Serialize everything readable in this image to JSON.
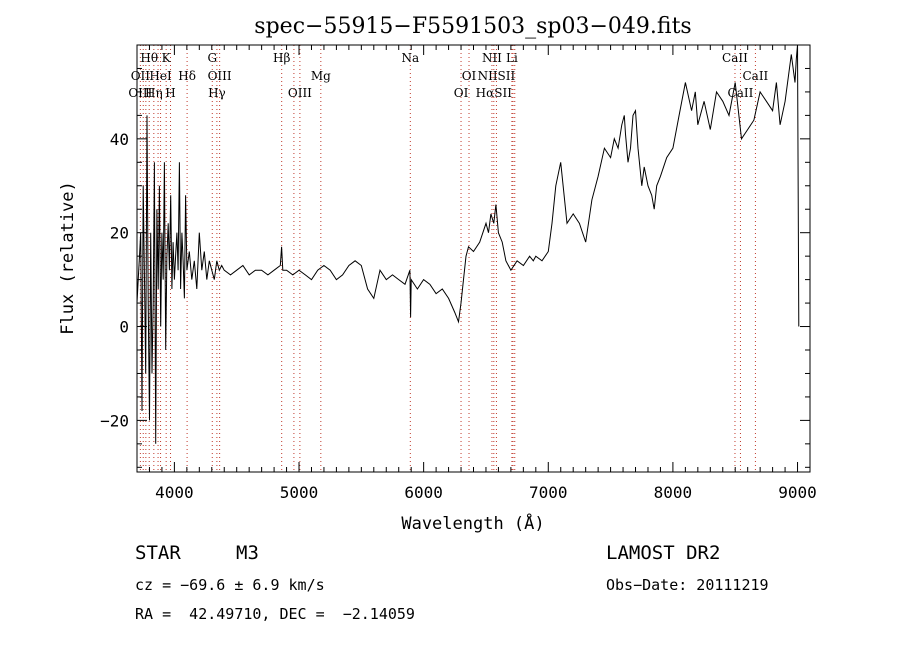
{
  "chart_data": {
    "type": "line",
    "title": "spec−55915−F5591503_sp03−049.fits",
    "xlabel": "Wavelength (Å)",
    "ylabel": "Flux (relative)",
    "xlim": [
      3700,
      9100
    ],
    "ylim": [
      -31,
      60
    ],
    "x_ticks": [
      4000,
      5000,
      6000,
      7000,
      8000,
      9000
    ],
    "y_ticks": [
      -20,
      0,
      20,
      40
    ],
    "x_tick_labels": [
      "4000",
      "5000",
      "6000",
      "7000",
      "8000",
      "9000"
    ],
    "y_tick_labels": [
      "−20",
      "0",
      "20",
      "40"
    ],
    "grid": false,
    "series": [
      {
        "color": "#000000",
        "x": [
          3700,
          3710,
          3720,
          3730,
          3740,
          3750,
          3760,
          3770,
          3780,
          3790,
          3800,
          3810,
          3820,
          3830,
          3840,
          3850,
          3860,
          3870,
          3880,
          3890,
          3900,
          3910,
          3920,
          3930,
          3940,
          3950,
          3960,
          3970,
          3980,
          3990,
          4000,
          4010,
          4020,
          4030,
          4040,
          4050,
          4060,
          4070,
          4080,
          4090,
          4100,
          4120,
          4140,
          4160,
          4180,
          4200,
          4220,
          4240,
          4260,
          4280,
          4300,
          4320,
          4340,
          4360,
          4380,
          4400,
          4450,
          4500,
          4550,
          4600,
          4650,
          4700,
          4750,
          4800,
          4850,
          4860,
          4870,
          4900,
          4950,
          5000,
          5050,
          5100,
          5150,
          5200,
          5250,
          5300,
          5350,
          5400,
          5450,
          5500,
          5550,
          5600,
          5650,
          5700,
          5750,
          5800,
          5850,
          5890,
          5895,
          5900,
          5950,
          6000,
          6050,
          6100,
          6150,
          6200,
          6250,
          6280,
          6300,
          6320,
          6340,
          6360,
          6400,
          6450,
          6500,
          6520,
          6540,
          6563,
          6580,
          6600,
          6630,
          6660,
          6700,
          6750,
          6800,
          6850,
          6880,
          6900,
          6950,
          7000,
          7030,
          7060,
          7100,
          7150,
          7200,
          7250,
          7300,
          7350,
          7400,
          7450,
          7500,
          7530,
          7560,
          7590,
          7610,
          7620,
          7640,
          7660,
          7680,
          7700,
          7720,
          7750,
          7770,
          7800,
          7830,
          7850,
          7870,
          7900,
          7950,
          8000,
          8050,
          8100,
          8150,
          8180,
          8200,
          8250,
          8300,
          8350,
          8400,
          8450,
          8500,
          8550,
          8600,
          8650,
          8700,
          8750,
          8800,
          8830,
          8860,
          8900,
          8950,
          8980,
          8990,
          9000,
          9010
        ],
        "y": [
          5,
          10,
          15,
          20,
          -18,
          30,
          10,
          -10,
          45,
          5,
          -20,
          20,
          -10,
          5,
          35,
          -25,
          25,
          8,
          30,
          0,
          20,
          10,
          35,
          -5,
          15,
          22,
          12,
          28,
          8,
          18,
          10,
          15,
          20,
          12,
          35,
          8,
          20,
          14,
          6,
          28,
          12,
          16,
          10,
          14,
          8,
          20,
          12,
          16,
          10,
          14,
          12,
          10,
          14,
          12,
          13,
          12,
          11,
          12,
          13,
          11,
          12,
          12,
          11,
          12,
          13,
          17,
          12,
          12,
          11,
          12,
          11,
          10,
          12,
          13,
          12,
          10,
          11,
          13,
          14,
          13,
          8,
          6,
          12,
          10,
          11,
          10,
          9,
          12,
          2,
          10,
          8,
          10,
          9,
          7,
          8,
          6,
          3,
          1,
          5,
          10,
          15,
          17,
          16,
          18,
          22,
          20,
          24,
          22,
          26,
          20,
          18,
          14,
          12,
          14,
          13,
          15,
          14,
          15,
          14,
          16,
          22,
          30,
          35,
          22,
          24,
          22,
          18,
          27,
          32,
          38,
          36,
          40,
          38,
          43,
          45,
          41,
          35,
          38,
          45,
          46,
          38,
          30,
          34,
          30,
          28,
          25,
          30,
          32,
          36,
          38,
          45,
          52,
          46,
          50,
          43,
          48,
          42,
          50,
          48,
          45,
          52,
          40,
          42,
          44,
          50,
          48,
          46,
          52,
          43,
          48,
          58,
          52,
          57,
          62,
          0
        ]
      }
    ],
    "line_annotations": [
      {
        "label": "Hθ",
        "wave": 3798,
        "row": 1
      },
      {
        "label": "K",
        "wave": 3934,
        "row": 1
      },
      {
        "label": "OII",
        "wave": 3727,
        "row": 2
      },
      {
        "label": "HeI",
        "wave": 3889,
        "row": 2
      },
      {
        "label": "Hδ",
        "wave": 4102,
        "row": 2
      },
      {
        "label": "OIII",
        "wave": 3727,
        "row": 3
      },
      {
        "label": "Hη",
        "wave": 3835,
        "row": 3
      },
      {
        "label": "H",
        "wave": 3969,
        "row": 3
      },
      {
        "label": "G",
        "wave": 4304,
        "row": 1
      },
      {
        "label": "OIII",
        "wave": 4363,
        "row": 2
      },
      {
        "label": "Hγ",
        "wave": 4341,
        "row": 3
      },
      {
        "label": "Hβ",
        "wave": 4861,
        "row": 1
      },
      {
        "label": "Mg",
        "wave": 5175,
        "row": 2
      },
      {
        "label": "OIII",
        "wave": 5007,
        "row": 3
      },
      {
        "label": "Na",
        "wave": 5893,
        "row": 1
      },
      {
        "label": "OI",
        "wave": 6364,
        "row": 2
      },
      {
        "label": "OI",
        "wave": 6300,
        "row": 3
      },
      {
        "label": "NII",
        "wave": 6548,
        "row": 1
      },
      {
        "label": "Li",
        "wave": 6708,
        "row": 1
      },
      {
        "label": "NIISII",
        "wave": 6584,
        "row": 2
      },
      {
        "label": "HαSII",
        "wave": 6563,
        "row": 3
      },
      {
        "label": "CaII",
        "wave": 8498,
        "row": 1
      },
      {
        "label": "CaII",
        "wave": 8662,
        "row": 2
      },
      {
        "label": "CaII",
        "wave": 8542,
        "row": 3
      }
    ],
    "dotted_line_waves": [
      3727,
      3750,
      3771,
      3798,
      3835,
      3869,
      3889,
      3934,
      3969,
      4102,
      4304,
      4341,
      4363,
      4861,
      4959,
      5007,
      5175,
      5893,
      6300,
      6364,
      6548,
      6563,
      6584,
      6708,
      6717,
      6731,
      8498,
      8542,
      8662
    ]
  },
  "info": {
    "object_class": "STAR",
    "subclass": "M3",
    "survey": "LAMOST DR2",
    "cz": "cz = −69.6 ± 6.9 km/s",
    "obs_date": "Obs−Date: 20111219",
    "coords": "RA =  42.49710, DEC =  −2.14059"
  }
}
